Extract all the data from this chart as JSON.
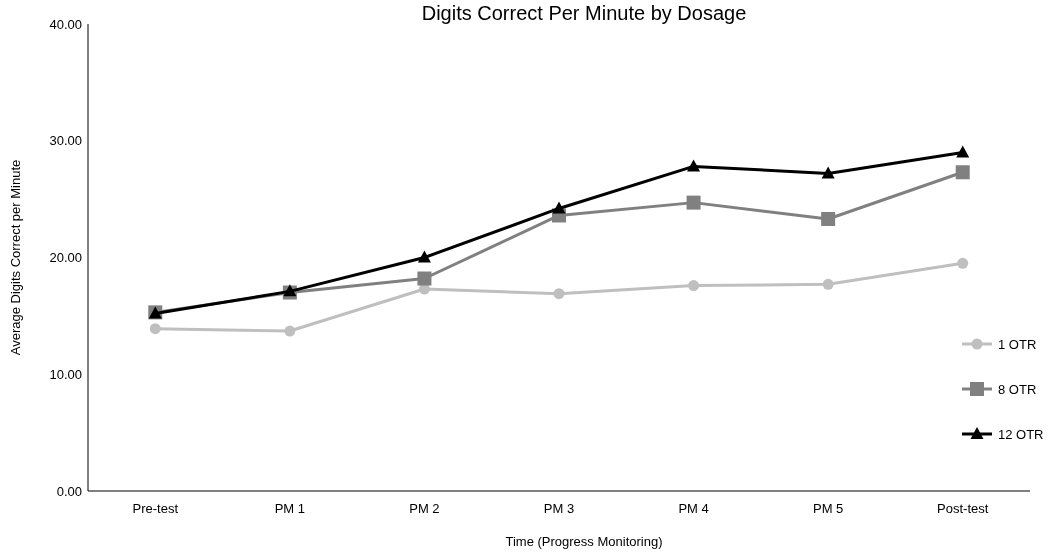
{
  "chart_data": {
    "type": "line",
    "title": "Digits Correct Per Minute by Dosage",
    "xlabel": "Time (Progress Monitoring)",
    "ylabel": "Average Digits Correct per Minute",
    "categories": [
      "Pre-test",
      "PM 1",
      "PM 2",
      "PM 3",
      "PM 4",
      "PM 5",
      "Post-test"
    ],
    "series": [
      {
        "name": "1 OTR",
        "color": "#bfbfbf",
        "marker": "circle",
        "values": [
          13.9,
          13.7,
          17.3,
          16.9,
          17.6,
          17.7,
          19.5
        ]
      },
      {
        "name": "8 OTR",
        "color": "#808080",
        "marker": "square",
        "values": [
          15.3,
          17.0,
          18.2,
          23.6,
          24.7,
          23.3,
          27.3
        ]
      },
      {
        "name": "12 OTR",
        "color": "#000000",
        "marker": "triangle",
        "values": [
          15.2,
          17.1,
          20.0,
          24.2,
          27.8,
          27.2,
          29.0
        ]
      }
    ],
    "ylim": [
      0,
      40
    ],
    "yticks": [
      {
        "value": 0,
        "label": "0.00"
      },
      {
        "value": 10,
        "label": "10.00"
      },
      {
        "value": 20,
        "label": "20.00"
      },
      {
        "value": 30,
        "label": "30.00"
      },
      {
        "value": 40,
        "label": "40.00"
      }
    ],
    "grid": false,
    "legend": "right"
  }
}
